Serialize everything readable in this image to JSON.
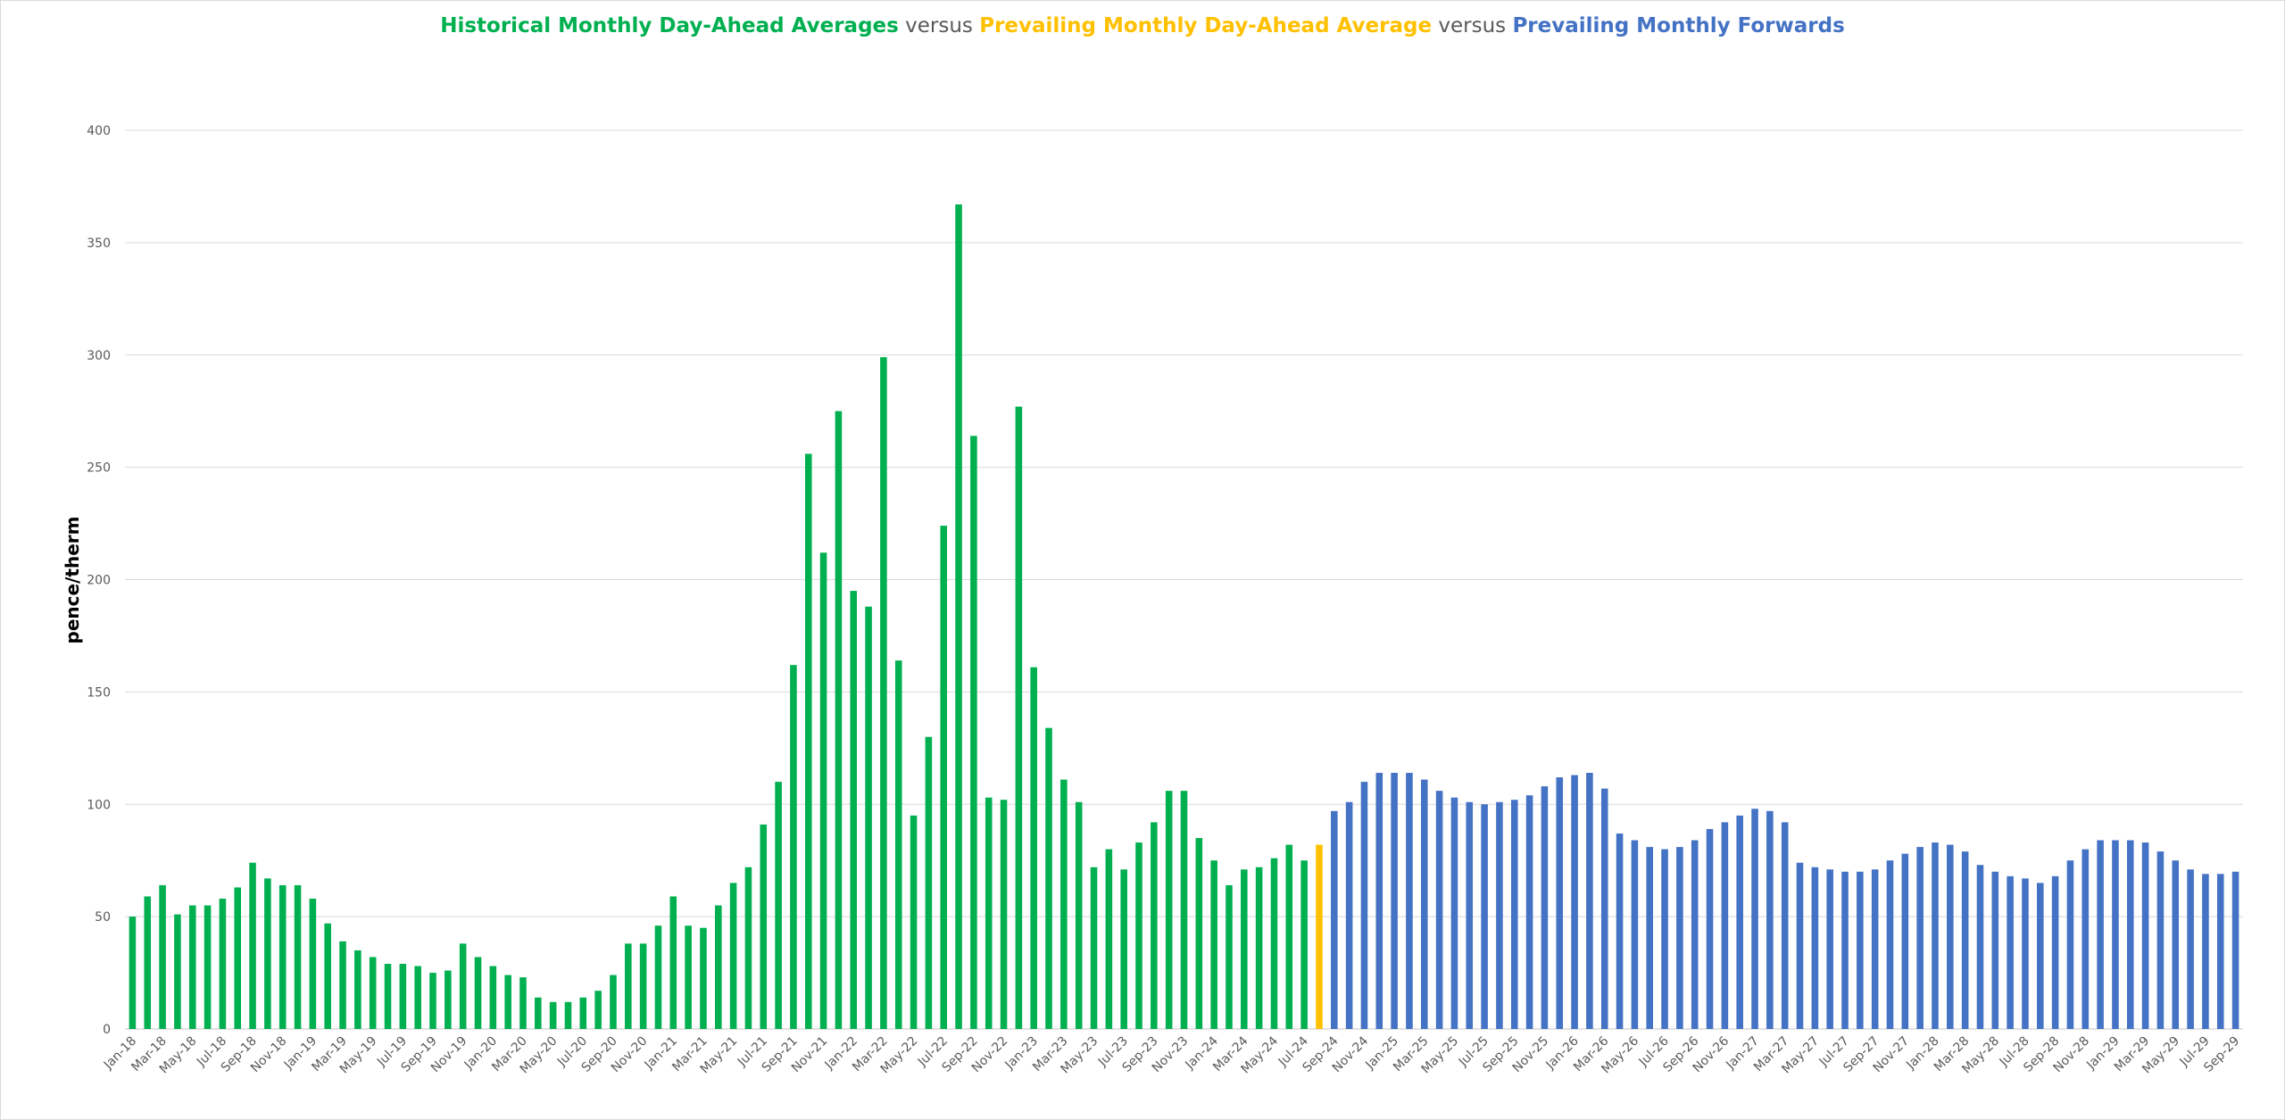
{
  "title": {
    "part1": "Historical Monthly Day-Ahead Averages",
    "sep1": " versus ",
    "part2": "Prevailing Monthly Day-Ahead Average",
    "sep2": " versus ",
    "part3": "Prevailing Monthly Forwards"
  },
  "colors": {
    "historical": "#00b050",
    "prevailing": "#ffc000",
    "forwards": "#4472c4",
    "grid": "#d9d9d9",
    "text": "#595959"
  },
  "chart_data": {
    "type": "bar",
    "ylabel": "pence/therm",
    "xlabel": "",
    "ylim": [
      0,
      400
    ],
    "yticks": [
      0,
      50,
      100,
      150,
      200,
      250,
      300,
      350,
      400
    ],
    "grid": true,
    "start_month": "Jan-18",
    "x_tick_labels": [
      "Jan-18",
      "Mar-18",
      "May-18",
      "Jul-18",
      "Sep-18",
      "Nov-18",
      "Jan-19",
      "Mar-19",
      "May-19",
      "Jul-19",
      "Sep-19",
      "Nov-19",
      "Jan-20",
      "Mar-20",
      "May-20",
      "Jul-20",
      "Sep-20",
      "Nov-20",
      "Jan-21",
      "Mar-21",
      "May-21",
      "Jul-21",
      "Sep-21",
      "Nov-21",
      "Jan-22",
      "Mar-22",
      "May-22",
      "Jul-22",
      "Sep-22",
      "Nov-22",
      "Jan-23",
      "Mar-23",
      "May-23",
      "Jul-23",
      "Sep-23",
      "Nov-23",
      "Jan-24",
      "Mar-24",
      "May-24",
      "Jul-24",
      "Sep-24",
      "Nov-24",
      "Jan-25",
      "Mar-25",
      "May-25",
      "Jul-25",
      "Sep-25",
      "Nov-25",
      "Jan-26",
      "Mar-26",
      "May-26",
      "Jul-26",
      "Sep-26",
      "Nov-26",
      "Jan-27",
      "Mar-27",
      "May-27",
      "Jul-27",
      "Sep-27",
      "Nov-27",
      "Jan-28",
      "Mar-28",
      "May-28",
      "Jul-28",
      "Sep-28",
      "Nov-28",
      "Jan-29",
      "Mar-29",
      "May-29",
      "Jul-29",
      "Sep-29"
    ],
    "series": [
      {
        "name": "Historical Monthly Day-Ahead Averages",
        "color": "#00b050",
        "values": [
          50,
          59,
          64,
          51,
          55,
          55,
          58,
          63,
          74,
          67,
          64,
          64,
          58,
          47,
          39,
          35,
          32,
          29,
          29,
          28,
          25,
          26,
          38,
          32,
          28,
          24,
          23,
          14,
          12,
          12,
          14,
          17,
          24,
          38,
          38,
          46,
          59,
          46,
          45,
          55,
          65,
          72,
          91,
          110,
          162,
          256,
          212,
          275,
          195,
          188,
          299,
          164,
          95,
          130,
          224,
          367,
          264,
          103,
          102,
          277,
          161,
          134,
          111,
          101,
          72,
          80,
          71,
          83,
          92,
          106,
          106,
          85,
          75,
          64,
          71,
          72,
          76,
          82,
          75
        ]
      },
      {
        "name": "Prevailing Monthly Day-Ahead Average",
        "color": "#ffc000",
        "values": [
          82
        ]
      },
      {
        "name": "Prevailing Monthly Forwards",
        "color": "#4472c4",
        "values": [
          97,
          101,
          110,
          114,
          114,
          114,
          111,
          106,
          103,
          101,
          100,
          101,
          102,
          104,
          108,
          112,
          113,
          114,
          107,
          87,
          84,
          81,
          80,
          81,
          84,
          89,
          92,
          95,
          98,
          97,
          92,
          74,
          72,
          71,
          70,
          70,
          71,
          75,
          78,
          81,
          83,
          82,
          79,
          73,
          70,
          68,
          67,
          65,
          68,
          75,
          80,
          84,
          84,
          84,
          83,
          79,
          75,
          71,
          69,
          69,
          70
        ]
      }
    ]
  }
}
